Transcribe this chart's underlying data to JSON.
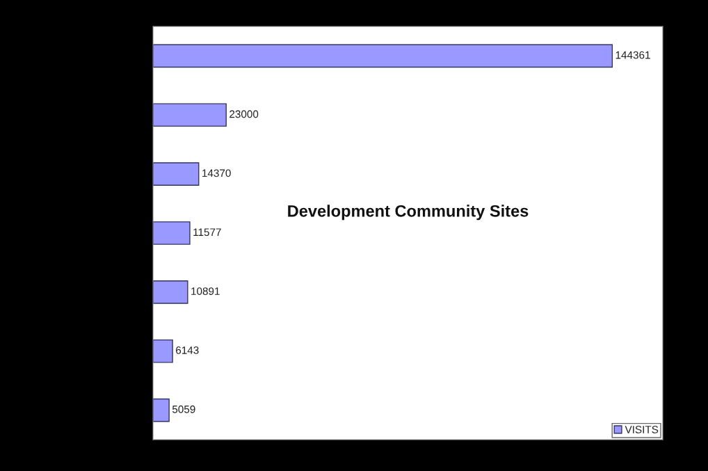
{
  "chart_data": {
    "type": "bar",
    "orientation": "horizontal",
    "title": "Development Community Sites",
    "categories": [
      null,
      null,
      null,
      null,
      null,
      null,
      null
    ],
    "series": [
      {
        "name": "VISITS",
        "color": "#9999ff",
        "values": [
          144361,
          23000,
          14370,
          11577,
          10891,
          6143,
          5059
        ]
      }
    ],
    "data_labels": true,
    "legend": "bottom right",
    "grid": false
  }
}
